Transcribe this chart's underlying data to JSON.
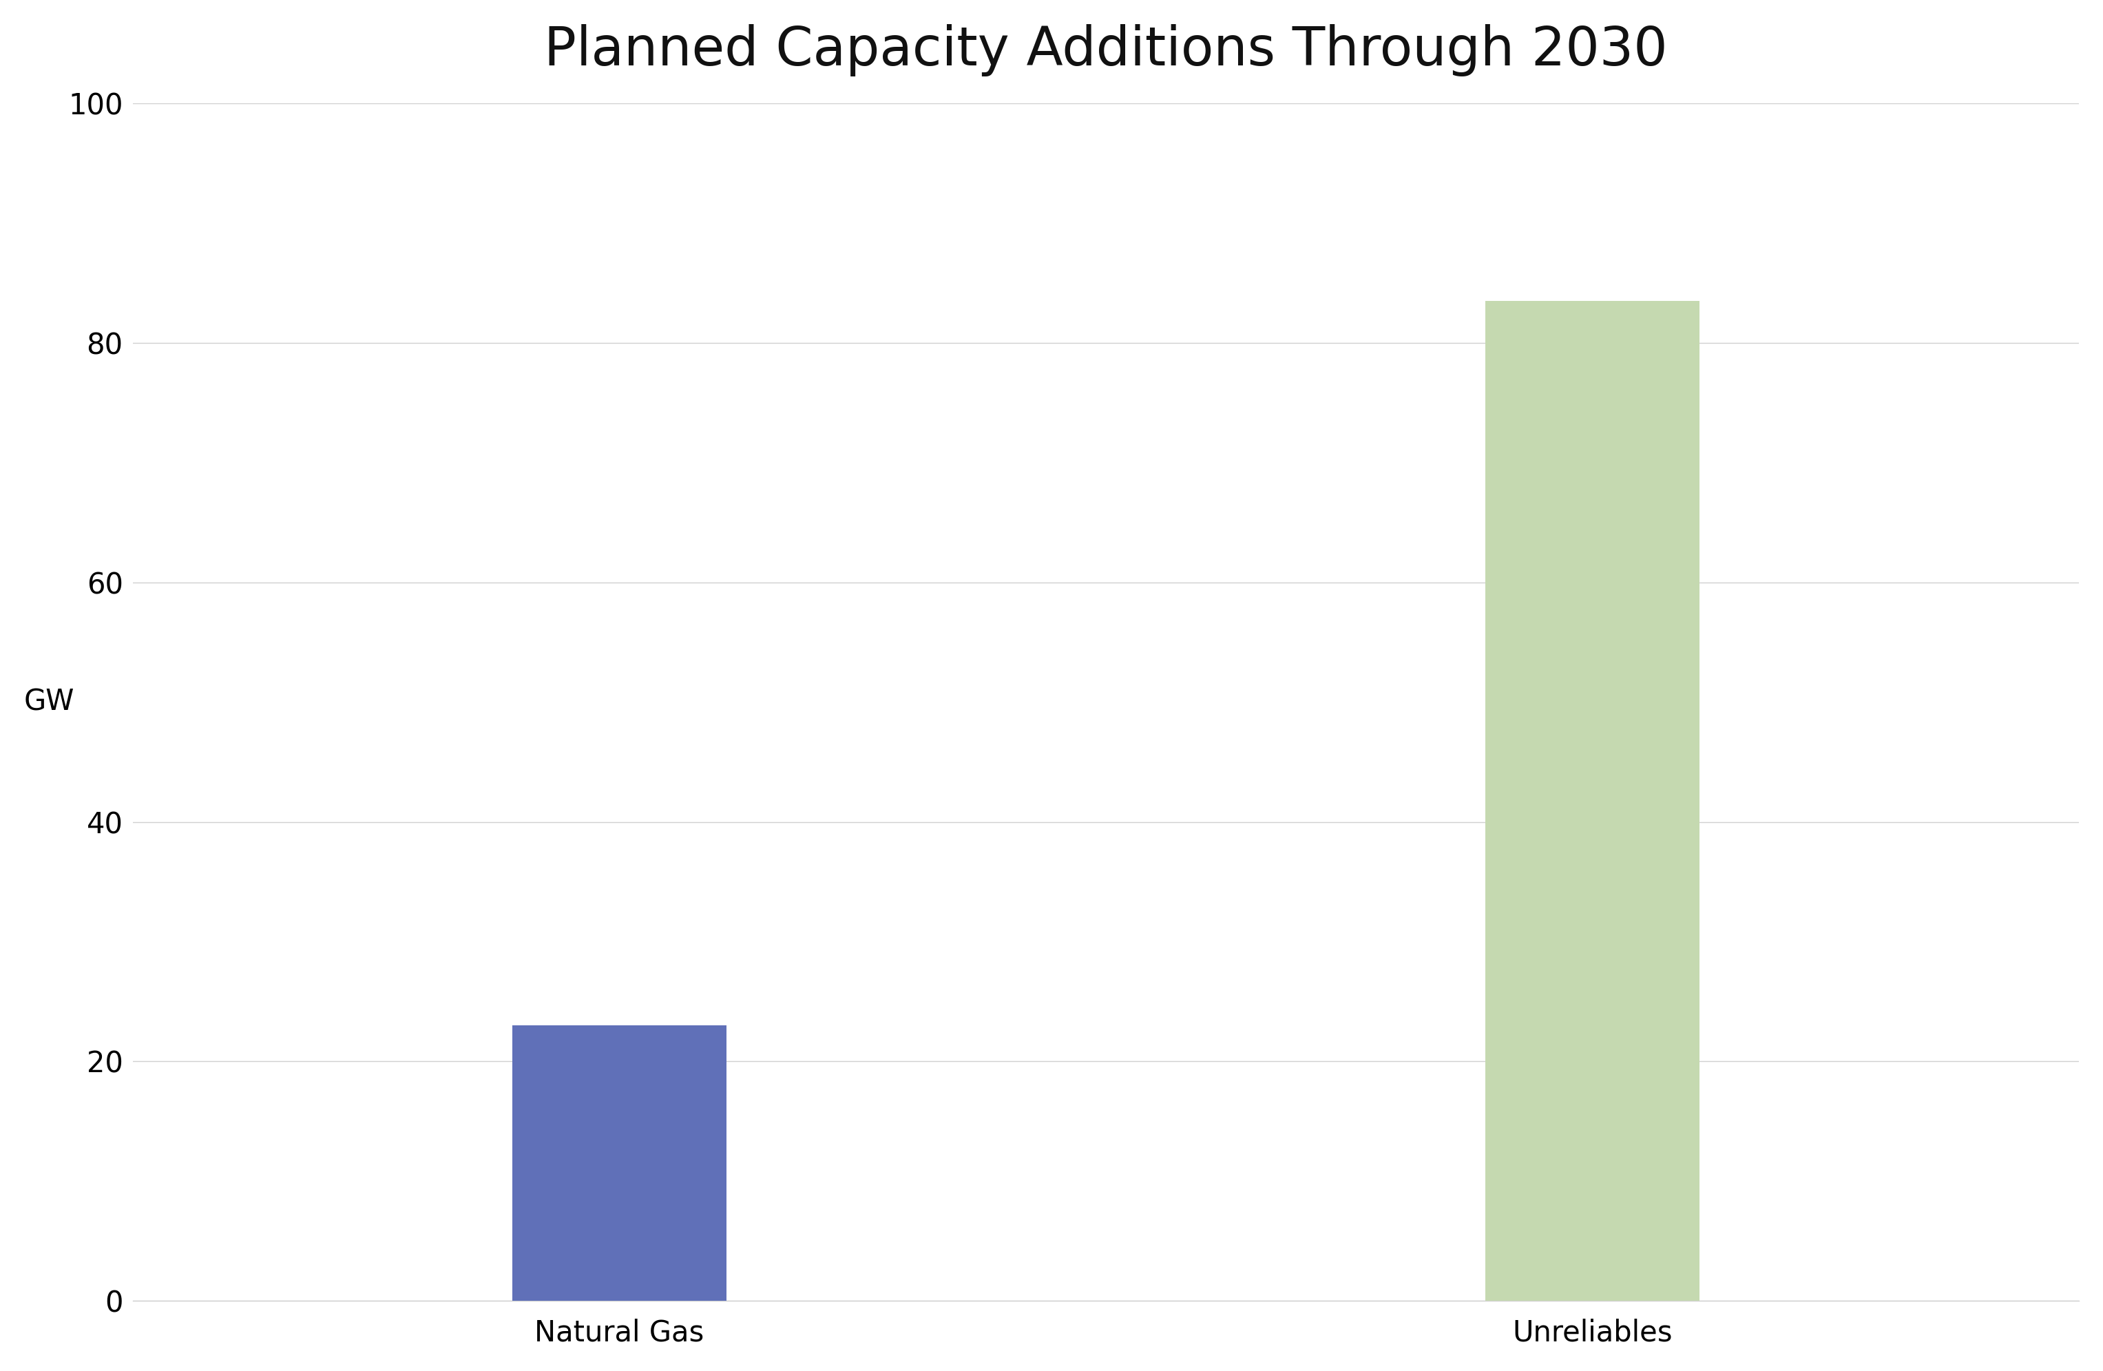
{
  "title": "Planned Capacity Additions Through 2030",
  "categories": [
    "Natural Gas",
    "Unreliables"
  ],
  "values": [
    23,
    83.5
  ],
  "bar_colors": [
    "#6070b8",
    "#c5d9b0"
  ],
  "ylabel": "GW",
  "ylim": [
    0,
    100
  ],
  "yticks": [
    0,
    20,
    40,
    60,
    80,
    100
  ],
  "background_color": "#ffffff",
  "title_fontsize": 56,
  "axis_fontsize": 30,
  "tick_fontsize": 30,
  "bar_width": 0.22,
  "grid_color": "#d0d0d0",
  "bar_positions": [
    1,
    2
  ]
}
